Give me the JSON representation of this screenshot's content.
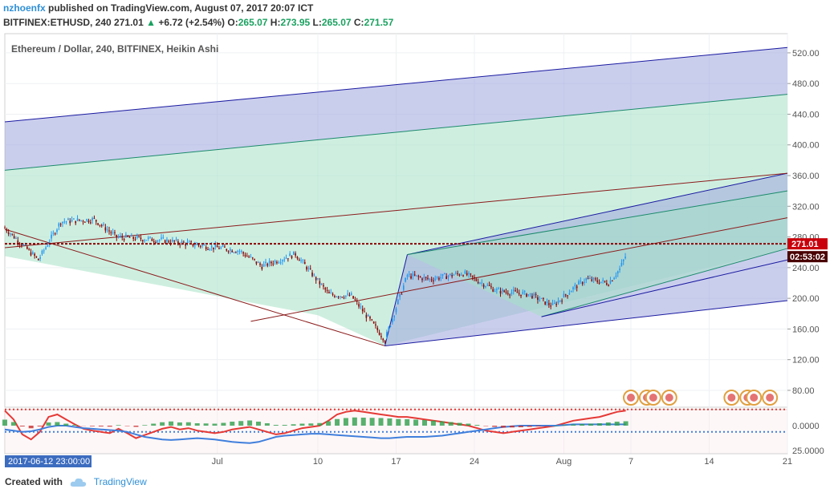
{
  "header": {
    "user": "nzhoenfx",
    "published": " published on TradingView.com, August 07, 2017 20:07 ICT",
    "symbol": "BITFINEX:ETHUSD, 240",
    "last": "271.01",
    "change": "+6.72 (+2.54%)",
    "o_label": "O:",
    "o_value": "265.07",
    "h_label": "H:",
    "h_value": "273.95",
    "l_label": "L:",
    "l_value": "265.07",
    "c_label": "C:",
    "c_value": "271.57"
  },
  "footer": {
    "created_with": "Created with",
    "brand": "TradingView"
  },
  "colors": {
    "up": "#2196f3",
    "down": "#8b0000",
    "channel_fill": "#9fa6df",
    "channel_line": "#1a1aa0",
    "fib_fill": "#a6e1c7",
    "fib_line": "#1b8a6b",
    "trend": "#8b1a1a",
    "price_line": "#8b0000",
    "rsi": "#e53935",
    "signal": "#3f7fdc",
    "hist_pos": "#2e9e4a",
    "hist_neg": "#c62828"
  },
  "chart_data": [
    {
      "type": "candlestick",
      "title": "Ethereum / Dollar, 240, BITFINEX, Heikin Ashi",
      "ylim": [
        58,
        545
      ],
      "y_ticks": [
        "520.00",
        "480.00",
        "440.00",
        "400.00",
        "360.00",
        "320.00",
        "280.00",
        "240.00",
        "200.00",
        "160.00",
        "120.00",
        "80.00"
      ],
      "x_ticks": [
        "Jul",
        "10",
        "17",
        "24",
        "Aug",
        "7",
        "14",
        "21"
      ],
      "x_start_label": "2017-06-12 23:00:00",
      "last_price_label": "271.01",
      "countdown_label": "02:53:02",
      "anchors": [
        [
          "2017-06-12",
          292
        ],
        [
          "2017-06-15",
          250
        ],
        [
          "2017-06-17",
          300
        ],
        [
          "2017-06-20",
          303
        ],
        [
          "2017-06-22",
          280
        ],
        [
          "2017-06-26",
          276
        ],
        [
          "2017-06-29",
          270
        ],
        [
          "2017-07-03",
          262
        ],
        [
          "2017-07-05",
          242
        ],
        [
          "2017-07-08",
          258
        ],
        [
          "2017-07-11",
          205
        ],
        [
          "2017-07-13",
          203
        ],
        [
          "2017-07-16",
          146
        ],
        [
          "2017-07-18",
          230
        ],
        [
          "2017-07-20",
          225
        ],
        [
          "2017-07-23",
          233
        ],
        [
          "2017-07-26",
          210
        ],
        [
          "2017-07-29",
          205
        ],
        [
          "2017-07-31",
          190
        ],
        [
          "2017-08-02",
          215
        ],
        [
          "2017-08-03",
          225
        ],
        [
          "2017-08-05",
          220
        ],
        [
          "2017-08-06",
          238
        ],
        [
          "2017-08-07",
          271
        ]
      ],
      "overlays": {
        "big_channel": {
          "upper": [
            [
              "2017-06-12",
              430
            ],
            [
              "2017-08-21",
              527
            ]
          ],
          "lower": [
            [
              "2017-06-12",
              367
            ],
            [
              "2017-08-21",
              466
            ]
          ]
        },
        "fib_zone": {
          "points": [
            [
              "2017-06-12",
              367
            ],
            [
              "2017-08-21",
              466
            ],
            [
              "2017-08-21",
              265
            ],
            [
              "2017-07-16",
              138
            ],
            [
              "2017-07-10",
              178
            ],
            [
              "2017-06-12",
              255
            ]
          ]
        },
        "lower_channel": {
          "upper": [
            [
              "2017-07-18",
              257
            ],
            [
              "2017-08-21",
              363
            ]
          ],
          "lower": [
            [
              "2017-07-16",
              138
            ],
            [
              "2017-08-21",
              197
            ]
          ],
          "inner1": [
            [
              "2017-07-18",
              257
            ],
            [
              "2017-08-21",
              340
            ]
          ],
          "inner2": [
            [
              "2017-07-30",
              176
            ],
            [
              "2017-08-21",
              265
            ]
          ],
          "left_edge": [
            [
              "2017-07-18",
              257
            ],
            [
              "2017-07-16",
              138
            ]
          ],
          "bottom": [
            [
              "2017-07-30",
              176
            ],
            [
              "2017-08-21",
              250
            ]
          ]
        },
        "trend_lines": [
          [
            [
              "2017-06-12",
              266
            ],
            [
              "2017-08-21",
              363
            ]
          ],
          [
            [
              "2017-07-04",
              170
            ],
            [
              "2017-08-21",
              305
            ]
          ],
          [
            [
              "2017-06-12",
              290
            ],
            [
              "2017-07-16",
              138
            ]
          ]
        ]
      }
    },
    {
      "type": "line",
      "y_ticks": [
        "0.0000",
        "25.0000"
      ],
      "series": [
        {
          "key": "rsi",
          "values": [
            24,
            10,
            -14,
            -22,
            -10,
            14,
            18,
            10,
            2,
            -5,
            -8,
            -10,
            -12,
            -5,
            -12,
            -20,
            -15,
            -10,
            -5,
            -2,
            -6,
            -4,
            -8,
            -10,
            -12,
            -10,
            -6,
            -4,
            -2,
            -6,
            -10,
            -14,
            -12,
            -8,
            -4,
            -2,
            0,
            8,
            18,
            22,
            24,
            22,
            20,
            18,
            16,
            14,
            14,
            12,
            10,
            8,
            6,
            4,
            2,
            0,
            -4,
            -8,
            -10,
            -12,
            -10,
            -8,
            -6,
            -4,
            -2,
            0,
            4,
            8,
            10,
            12,
            14,
            18,
            22,
            24
          ]
        },
        {
          "key": "signal",
          "values": [
            -6,
            -8,
            -10,
            -9,
            -6,
            -2,
            0,
            0,
            -2,
            -4,
            -5,
            -6,
            -7,
            -8,
            -10,
            -14,
            -18,
            -20,
            -22,
            -23,
            -22,
            -21,
            -20,
            -21,
            -22,
            -24,
            -26,
            -27,
            -28,
            -26,
            -22,
            -18,
            -16,
            -15,
            -14,
            -13,
            -13,
            -14,
            -15,
            -16,
            -17,
            -18,
            -19,
            -20,
            -20,
            -19,
            -18,
            -18,
            -18,
            -17,
            -16,
            -14,
            -12,
            -10,
            -8,
            -6,
            -4,
            -2,
            -1,
            0,
            0,
            0,
            0,
            0,
            1,
            2,
            2,
            2,
            2,
            2,
            2,
            2
          ]
        }
      ],
      "ref_levels": [
        {
          "key": "rsi",
          "value": 26
        },
        {
          "key": "signal",
          "value": -10
        }
      ]
    }
  ]
}
